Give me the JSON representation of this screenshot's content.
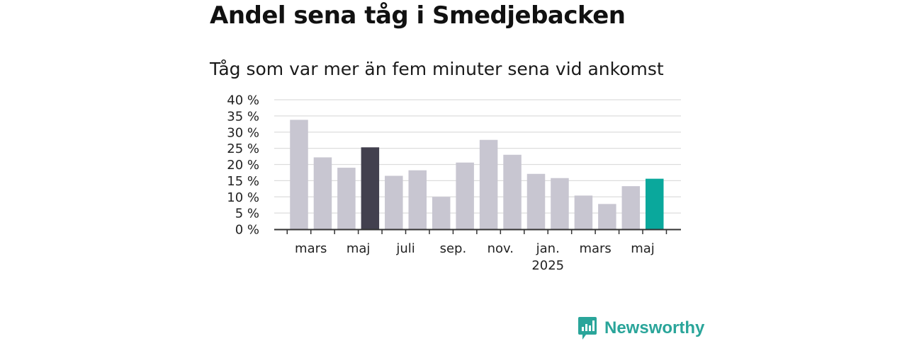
{
  "title": "Andel sena tåg i Smedjebacken",
  "subtitle": "Tåg som var mer än fem minuter sena vid ankomst",
  "brand": {
    "name": "Newsworthy",
    "icon": "newsworthy-logo-icon",
    "color": "#2aa59a"
  },
  "colors": {
    "default_bar": "#c8c6d1",
    "highlight_bar": "#42404e",
    "latest_bar": "#0aa89c",
    "grid": "#dddddd",
    "axis": "#333333"
  },
  "chart_data": {
    "type": "bar",
    "ylim": [
      0,
      40
    ],
    "y_ticks": [
      "0 %",
      "5 %",
      "10 %",
      "15 %",
      "20 %",
      "25 %",
      "30 %",
      "35 %",
      "40 %"
    ],
    "y_tick_values": [
      0,
      5,
      10,
      15,
      20,
      25,
      30,
      35,
      40
    ],
    "x_tick_labels": [
      {
        "label": "mars",
        "after_bar": 1
      },
      {
        "label": "maj",
        "after_bar": 3
      },
      {
        "label": "juli",
        "after_bar": 5
      },
      {
        "label": "sep.",
        "after_bar": 7
      },
      {
        "label": "nov.",
        "after_bar": 9
      },
      {
        "label": "jan.",
        "sub": "2025",
        "after_bar": 11
      },
      {
        "label": "mars",
        "after_bar": 13
      },
      {
        "label": "maj",
        "after_bar": 15
      }
    ],
    "values": [
      33.8,
      22.2,
      19.0,
      25.3,
      16.5,
      18.2,
      10.0,
      20.6,
      27.6,
      23.0,
      17.1,
      15.8,
      10.4,
      7.8,
      13.3,
      15.6
    ],
    "bar_colors": [
      "default",
      "default",
      "default",
      "highlight",
      "default",
      "default",
      "default",
      "default",
      "default",
      "default",
      "default",
      "default",
      "default",
      "default",
      "default",
      "latest"
    ],
    "grid": true
  }
}
